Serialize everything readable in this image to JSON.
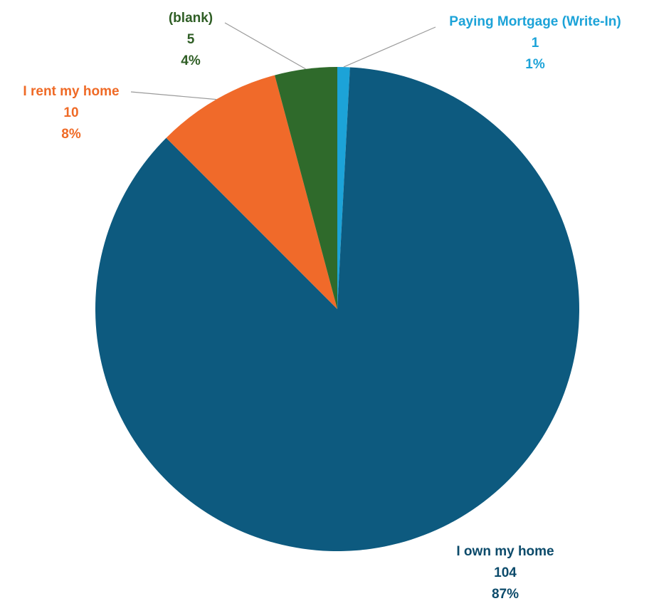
{
  "chart_data": {
    "type": "pie",
    "slices": [
      {
        "label": "I own my home",
        "count": "104",
        "percent": "87%",
        "value": 104,
        "color": "#0d5a7f"
      },
      {
        "label": "I rent my home",
        "count": "10",
        "percent": "8%",
        "value": 10,
        "color": "#f06a2a"
      },
      {
        "label": "(blank)",
        "count": "5",
        "percent": "4%",
        "value": 5,
        "color": "#2f6a2b"
      },
      {
        "label": "Paying Mortgage (Write-In)",
        "count": "1",
        "percent": "1%",
        "value": 1,
        "color": "#1ca3d8"
      }
    ],
    "label_colors": [
      "#0b4a6a",
      "#ef6a26",
      "#2f5e25",
      "#1ca3d8"
    ],
    "leader_line_color": "#9a9a9a"
  }
}
